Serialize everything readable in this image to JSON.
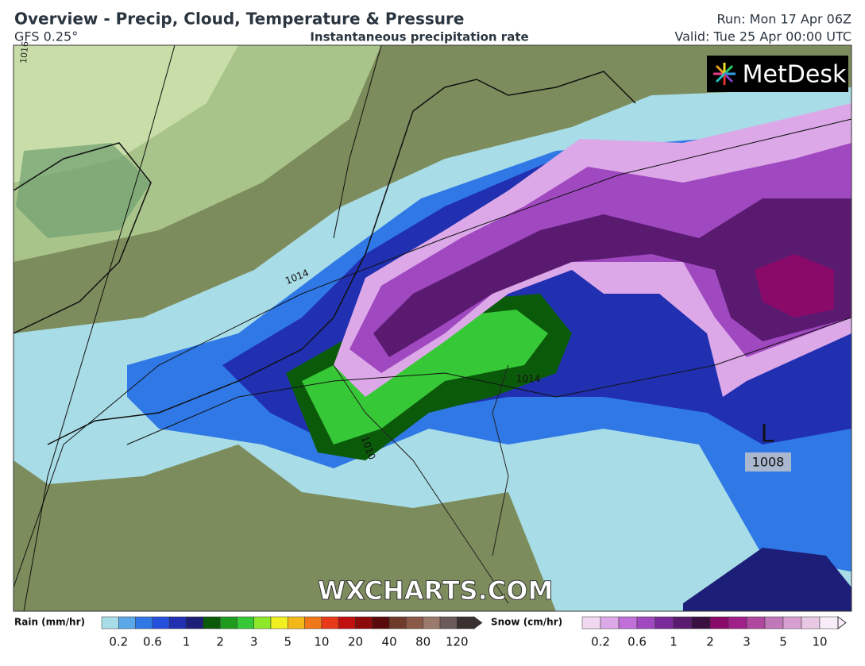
{
  "header": {
    "title": "Overview - Precip, Cloud, Temperature & Pressure",
    "model": "GFS 0.25°",
    "subtitle": "Instantaneous precipitation rate",
    "run": "Run: Mon 17 Apr 06Z",
    "valid": "Valid: Tue 25 Apr 00:00 UTC"
  },
  "map": {
    "logo": "MetDesk",
    "watermark": "WXCHARTS.COM",
    "isobar_labels": [
      "1016",
      "1014",
      "1014",
      "1010"
    ],
    "low": {
      "symbol": "L",
      "pressure": "1008"
    }
  },
  "legend": {
    "rain": {
      "label": "Rain (mm/hr)",
      "ticks": [
        "0.2",
        "0.6",
        "1",
        "2",
        "3",
        "5",
        "10",
        "20",
        "40",
        "80",
        "120"
      ],
      "colors": [
        "#a8dce6",
        "#5aa8e8",
        "#2f78e6",
        "#2450dc",
        "#2030b0",
        "#1c1e78",
        "#0a5a0a",
        "#1f9a1f",
        "#37c837",
        "#8ee82a",
        "#f0f020",
        "#f5b81a",
        "#f07818",
        "#e83a18",
        "#c01010",
        "#8c0a0a",
        "#5a0a0a",
        "#6e3a2a",
        "#8a5a48",
        "#9a7a6a",
        "#6a5a5a",
        "#3a3030"
      ]
    },
    "snow": {
      "label": "Snow (cm/hr)",
      "ticks": [
        "0.2",
        "0.6",
        "1",
        "2",
        "3",
        "5",
        "10"
      ],
      "colors": [
        "#f0d8f0",
        "#dca8e8",
        "#c070d8",
        "#a048c0",
        "#7a2a9a",
        "#5a1a70",
        "#3a1040",
        "#8a0a6a",
        "#a0208a",
        "#b048a0",
        "#c078b8",
        "#d8a0d0",
        "#e8c8e4",
        "#f8ecf8"
      ]
    }
  }
}
